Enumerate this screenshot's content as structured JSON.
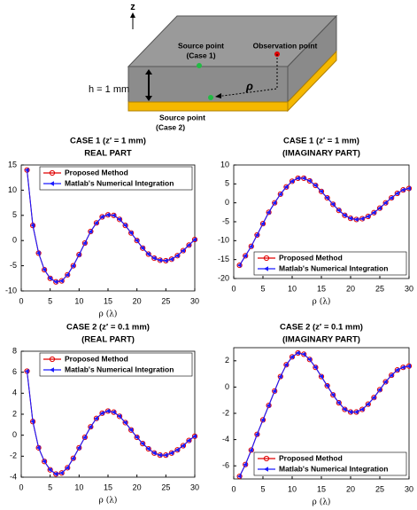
{
  "diagram": {
    "axis": "z",
    "source_case1": [
      "Source point",
      "(Case 1)"
    ],
    "observation": "Observation point",
    "height": "h = 1 mm",
    "rho": "ρ",
    "source_case2": [
      "Source point",
      "(Case 2)"
    ]
  },
  "chart_data": [
    {
      "type": "line",
      "title": "CASE 1 (z′ = 1 mm)",
      "subtitle": "REAL PART",
      "xlabel": "ρ (λ)",
      "legend": "upper right",
      "x": [
        1,
        2,
        3,
        4,
        5,
        6,
        7,
        8,
        9,
        10,
        11,
        12,
        13,
        14,
        15,
        16,
        17,
        18,
        19,
        20,
        21,
        22,
        23,
        24,
        25,
        26,
        27,
        28,
        29,
        30
      ],
      "xlim": [
        0,
        30
      ],
      "xticks": [
        0,
        5,
        10,
        15,
        20,
        25,
        30
      ],
      "ylim": [
        -10,
        15
      ],
      "yticks": [
        -10,
        -5,
        0,
        5,
        10,
        15
      ],
      "series": [
        {
          "name": "Proposed Method",
          "color": "#e00000",
          "values": [
            14,
            3,
            -2.5,
            -5.8,
            -7.5,
            -8.2,
            -8,
            -6.8,
            -5,
            -2.8,
            -0.5,
            1.8,
            3.5,
            4.7,
            5.1,
            5,
            4.2,
            3,
            1.5,
            0,
            -1.5,
            -2.7,
            -3.5,
            -3.9,
            -4,
            -3.7,
            -3,
            -2,
            -0.9,
            0.2
          ]
        },
        {
          "name": "Matlab's Numerical Integration",
          "color": "#1a1aff",
          "values": [
            14,
            3,
            -2.5,
            -5.8,
            -7.5,
            -8.2,
            -8,
            -6.8,
            -5,
            -2.8,
            -0.5,
            1.8,
            3.5,
            4.7,
            5.1,
            5,
            4.2,
            3,
            1.5,
            0,
            -1.5,
            -2.7,
            -3.5,
            -3.9,
            -4,
            -3.7,
            -3,
            -2,
            -0.9,
            0.2
          ]
        }
      ]
    },
    {
      "type": "line",
      "title": "CASE 1 (z′ = 1 mm)",
      "subtitle": "(IMAGINARY PART)",
      "xlabel": "ρ (λ)",
      "legend": "lower right",
      "x": [
        1,
        2,
        3,
        4,
        5,
        6,
        7,
        8,
        9,
        10,
        11,
        12,
        13,
        14,
        15,
        16,
        17,
        18,
        19,
        20,
        21,
        22,
        23,
        24,
        25,
        26,
        27,
        28,
        29,
        30
      ],
      "xlim": [
        0,
        30
      ],
      "xticks": [
        0,
        5,
        10,
        15,
        20,
        25,
        30
      ],
      "ylim": [
        -20,
        10
      ],
      "yticks": [
        -20,
        -15,
        -10,
        -5,
        0,
        5,
        10
      ],
      "series": [
        {
          "name": "Proposed Method",
          "color": "#e00000",
          "values": [
            -16.5,
            -14,
            -11.5,
            -8.5,
            -5.5,
            -2.5,
            0,
            2.3,
            4.2,
            5.7,
            6.5,
            6.5,
            5.8,
            4.6,
            3,
            1.3,
            -0.4,
            -2,
            -3.3,
            -4.1,
            -4.4,
            -4.2,
            -3.6,
            -2.6,
            -1.4,
            0,
            1.3,
            2.5,
            3.4,
            3.8
          ]
        },
        {
          "name": "Matlab's Numerical Integration",
          "color": "#1a1aff",
          "values": [
            -16.5,
            -14,
            -11.5,
            -8.5,
            -5.5,
            -2.5,
            0,
            2.3,
            4.2,
            5.7,
            6.5,
            6.5,
            5.8,
            4.6,
            3,
            1.3,
            -0.4,
            -2,
            -3.3,
            -4.1,
            -4.4,
            -4.2,
            -3.6,
            -2.6,
            -1.4,
            0,
            1.3,
            2.5,
            3.4,
            3.8
          ]
        }
      ]
    },
    {
      "type": "line",
      "title": "CASE 2 (z′ = 0.1 mm)",
      "subtitle": "(REAL PART)",
      "xlabel": "ρ (λ)",
      "legend": "upper right",
      "x": [
        1,
        2,
        3,
        4,
        5,
        6,
        7,
        8,
        9,
        10,
        11,
        12,
        13,
        14,
        15,
        16,
        17,
        18,
        19,
        20,
        21,
        22,
        23,
        24,
        25,
        26,
        27,
        28,
        29,
        30
      ],
      "xlim": [
        0,
        30
      ],
      "xticks": [
        0,
        5,
        10,
        15,
        20,
        25,
        30
      ],
      "ylim": [
        -4,
        8
      ],
      "yticks": [
        -4,
        -2,
        0,
        2,
        4,
        6,
        8
      ],
      "series": [
        {
          "name": "Proposed Method",
          "color": "#e00000",
          "values": [
            6.1,
            1.3,
            -1.2,
            -2.5,
            -3.3,
            -3.7,
            -3.6,
            -3.1,
            -2.2,
            -1.2,
            -0.2,
            0.8,
            1.6,
            2.1,
            2.3,
            2.2,
            1.8,
            1.2,
            0.5,
            -0.2,
            -0.8,
            -1.3,
            -1.7,
            -1.9,
            -1.9,
            -1.7,
            -1.4,
            -1,
            -0.5,
            -0.1
          ]
        },
        {
          "name": "Matlab's Numerical Integration",
          "color": "#1a1aff",
          "values": [
            6.1,
            1.3,
            -1.2,
            -2.5,
            -3.3,
            -3.7,
            -3.6,
            -3.1,
            -2.2,
            -1.2,
            -0.2,
            0.8,
            1.6,
            2.1,
            2.3,
            2.2,
            1.8,
            1.2,
            0.5,
            -0.2,
            -0.8,
            -1.3,
            -1.7,
            -1.9,
            -1.9,
            -1.7,
            -1.4,
            -1,
            -0.5,
            -0.1
          ]
        }
      ]
    },
    {
      "type": "line",
      "title": "CASE 2 (z′ = 0.1 mm)",
      "subtitle": "(IMAGINARY PART)",
      "xlabel": "ρ (λ)",
      "legend": "lower right",
      "x": [
        1,
        2,
        3,
        4,
        5,
        6,
        7,
        8,
        9,
        10,
        11,
        12,
        13,
        14,
        15,
        16,
        17,
        18,
        19,
        20,
        21,
        22,
        23,
        24,
        25,
        26,
        27,
        28,
        29,
        30
      ],
      "xlim": [
        0,
        30
      ],
      "xticks": [
        0,
        5,
        10,
        15,
        20,
        25,
        30
      ],
      "ylim": [
        -7,
        3
      ],
      "yticks": [
        -6,
        -4,
        -2,
        0,
        2
      ],
      "series": [
        {
          "name": "Proposed Method",
          "color": "#e00000",
          "values": [
            -6.8,
            -5.9,
            -4.8,
            -3.6,
            -2.5,
            -1.4,
            -0.3,
            0.8,
            1.7,
            2.3,
            2.6,
            2.5,
            2.1,
            1.5,
            0.8,
            0.1,
            -0.6,
            -1.2,
            -1.7,
            -1.9,
            -1.9,
            -1.7,
            -1.3,
            -0.8,
            -0.2,
            0.4,
            0.9,
            1.3,
            1.5,
            1.6
          ]
        },
        {
          "name": "Matlab's Numerical Integration",
          "color": "#1a1aff",
          "values": [
            -6.8,
            -5.9,
            -4.8,
            -3.6,
            -2.5,
            -1.4,
            -0.3,
            0.8,
            1.7,
            2.3,
            2.6,
            2.5,
            2.1,
            1.5,
            0.8,
            0.1,
            -0.6,
            -1.2,
            -1.7,
            -1.9,
            -1.9,
            -1.7,
            -1.3,
            -0.8,
            -0.2,
            0.4,
            0.9,
            1.3,
            1.5,
            1.6
          ]
        }
      ]
    }
  ]
}
